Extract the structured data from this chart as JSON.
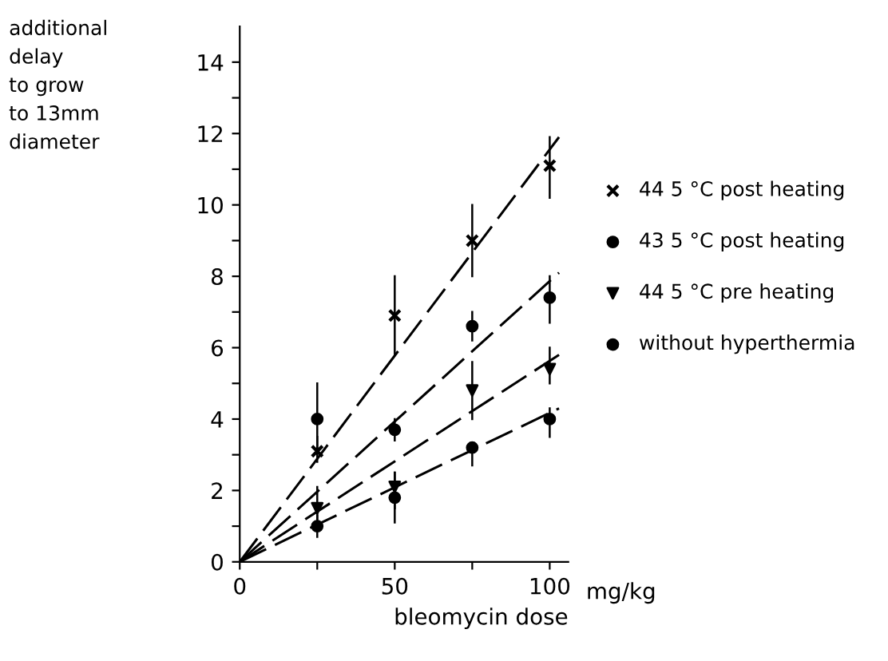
{
  "chart_data": {
    "type": "scatter",
    "ylabel": "additional\ndelay\nto grow\nto 13mm\ndiameter",
    "xlabel": "bleomycin dose",
    "annotations": [
      "mg/kg"
    ],
    "xlim": [
      0,
      106
    ],
    "ylim": [
      0,
      15
    ],
    "xticks": [
      0,
      {
        "value": 25,
        "label": null
      },
      50,
      {
        "value": 75,
        "label": null
      },
      100
    ],
    "yticks": [
      0,
      {
        "value": 1,
        "label": null
      },
      2,
      {
        "value": 3,
        "label": null
      },
      4,
      {
        "value": 5,
        "label": null
      },
      6,
      {
        "value": 7,
        "label": null
      },
      8,
      {
        "value": 9,
        "label": null
      },
      10,
      {
        "value": 11,
        "label": null
      },
      12,
      {
        "value": 13,
        "label": null
      },
      14
    ],
    "grid": false,
    "legend": "right",
    "series": [
      {
        "name": "44 5 °C post heating",
        "color": "#000000",
        "marker": "cross",
        "x": [
          25,
          50,
          75,
          100
        ],
        "values": [
          3.1,
          6.9,
          9.0,
          11.1
        ],
        "errors": [
          [
            2.8,
            3.5
          ],
          [
            5.8,
            8.0
          ],
          [
            8.0,
            10.0
          ],
          [
            10.2,
            11.9
          ]
        ]
      },
      {
        "name": "43 5 °C post heating",
        "color": "#000000",
        "marker": "circle",
        "x": [
          25,
          50,
          75,
          100
        ],
        "values": [
          4.0,
          3.7,
          6.6,
          7.4
        ],
        "errors": [
          [
            3.1,
            5.0
          ],
          [
            3.4,
            4.0
          ],
          [
            6.2,
            7.0
          ],
          [
            6.7,
            8.0
          ]
        ]
      },
      {
        "name": "44 5 °C pre heating",
        "color": "#000000",
        "marker": "triangle",
        "x": [
          25,
          50,
          75,
          100
        ],
        "values": [
          1.5,
          2.1,
          4.8,
          5.4
        ],
        "errors": [
          [
            1.0,
            2.1
          ],
          [
            1.5,
            2.5
          ],
          [
            4.0,
            5.6
          ],
          [
            5.0,
            6.0
          ]
        ]
      },
      {
        "name": "without hyperthermia",
        "color": "#000000",
        "marker": "circle",
        "x": [
          25,
          50,
          75,
          100
        ],
        "values": [
          1.0,
          1.8,
          3.2,
          4.0
        ],
        "errors": [
          [
            0.7,
            1.3
          ],
          [
            1.1,
            2.5
          ],
          [
            2.7,
            3.3
          ],
          [
            3.5,
            4.3
          ]
        ]
      },
      {
        "type": "line",
        "color": "#000000",
        "line_style": "dashed",
        "x": [
          0,
          103
        ],
        "values": [
          0,
          11.9
        ]
      },
      {
        "type": "line",
        "color": "#000000",
        "line_style": "dashed",
        "x": [
          0,
          103
        ],
        "values": [
          0,
          8.1
        ]
      },
      {
        "type": "line",
        "color": "#000000",
        "line_style": "dashed",
        "x": [
          0,
          103
        ],
        "values": [
          0,
          5.8
        ]
      },
      {
        "type": "line",
        "color": "#000000",
        "line_style": "dashed",
        "x": [
          0,
          103
        ],
        "values": [
          0,
          4.3
        ]
      }
    ]
  }
}
